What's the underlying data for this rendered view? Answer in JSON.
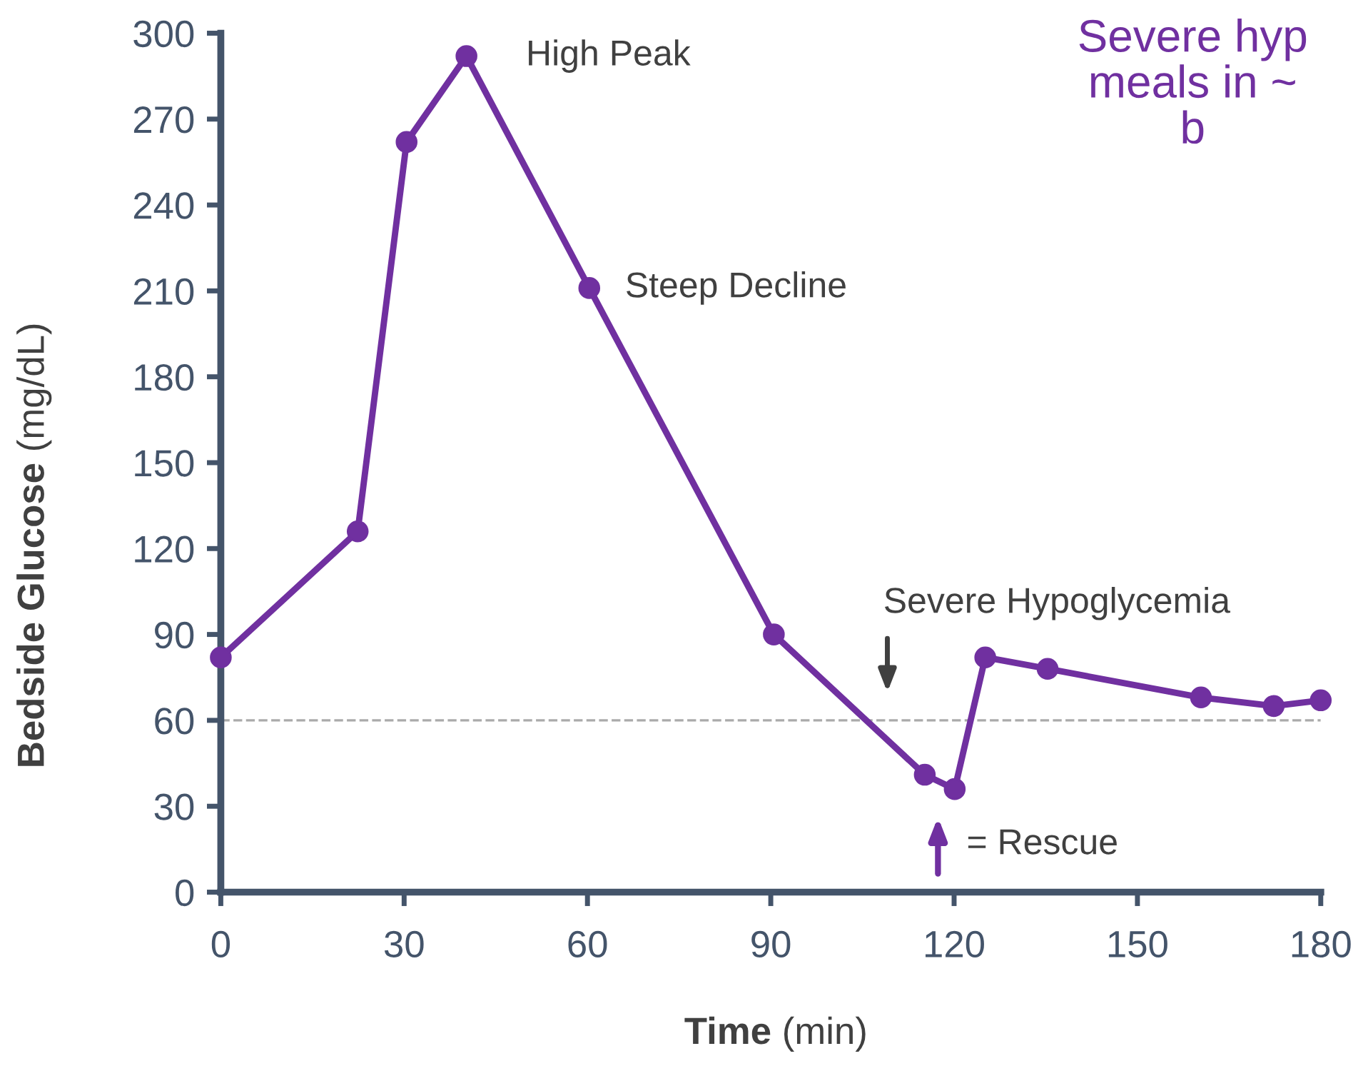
{
  "chart_data": {
    "type": "line",
    "xlabel": "Time (min)",
    "ylabel": "Bedside Glucose (mg/dL)",
    "x": [
      0,
      22.4,
      30.4,
      40.2,
      60.3,
      90.5,
      115.2,
      120.1,
      125.1,
      135.3,
      160.4,
      172.3,
      180
    ],
    "series": [
      {
        "color": "#7030a0",
        "values": [
          82,
          126,
          262,
          292,
          211,
          90,
          41,
          36,
          82,
          78,
          68,
          65,
          67
        ]
      }
    ],
    "xlim": [
      0,
      180
    ],
    "xticks": [
      0,
      30,
      60,
      90,
      120,
      150,
      180
    ],
    "ylim": [
      0,
      300
    ],
    "yticks": [
      0,
      30,
      60,
      90,
      120,
      150,
      180,
      210,
      240,
      270,
      300
    ],
    "marker": "circle",
    "line_style": "solid",
    "grid": false,
    "legend": false,
    "ref_lines": [
      {
        "axis": "y",
        "value": 60,
        "color": "#aaaaaa",
        "line_style": "dashed"
      }
    ],
    "annotations": [
      {
        "text": "High Peak",
        "x": 40.2,
        "y": 292
      },
      {
        "text": "Steep Decline",
        "x": 60.3,
        "y": 211
      },
      "Severe Hypoglycemia",
      "= Rescue",
      "Severe hyp\nmeals in ~\nb"
    ]
  }
}
